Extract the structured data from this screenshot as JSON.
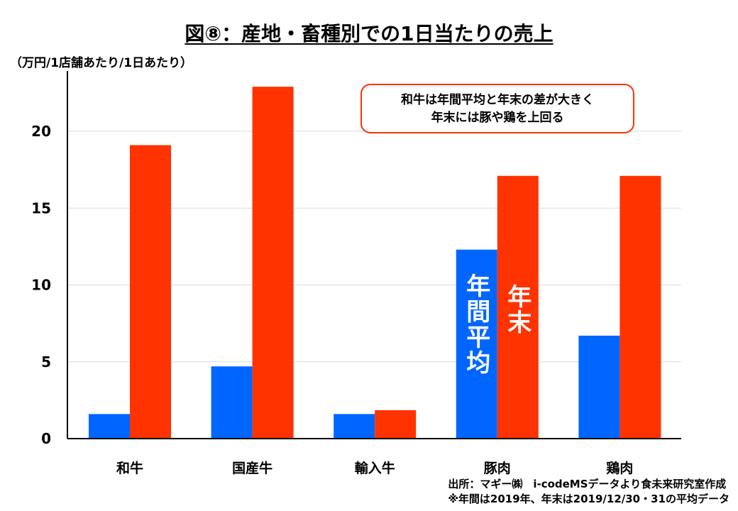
{
  "title": "図⑧：産地・畜種別での1日当たりの売上",
  "unit_label": "（万円/1店舗あたり/1日あたり）",
  "annotation": {
    "line1": "和牛は年間平均と年末の差が大きく",
    "line2": "年末には豚や鶏を上回る"
  },
  "source": {
    "line1": "出所：マギー㈱　i-codeMSデータより食未来研究室作成",
    "line2": "※年間は2019年、年末は2019/12/30・31の平均データ"
  },
  "colors": {
    "annual": "#0066ff",
    "year_end": "#ff3300",
    "grid": "#d9d9d9"
  },
  "chart_data": {
    "type": "bar",
    "title": "図⑧：産地・畜種別での1日当たりの売上",
    "xlabel": "",
    "ylabel": "（万円/1店舗あたり/1日あたり）",
    "categories": [
      "和牛",
      "国産牛",
      "輸入牛",
      "豚肉",
      "鶏肉"
    ],
    "series": [
      {
        "name": "年間平均",
        "values": [
          1.6,
          4.7,
          1.6,
          12.3,
          6.7
        ]
      },
      {
        "name": "年末",
        "values": [
          19.1,
          22.9,
          1.85,
          17.1,
          17.1
        ]
      }
    ],
    "yticks": [
      "0",
      "5",
      "10",
      "15",
      "20"
    ],
    "ylim": [
      0,
      23.5
    ],
    "grid": true,
    "legend": "inline labels inside 豚肉 bars"
  }
}
